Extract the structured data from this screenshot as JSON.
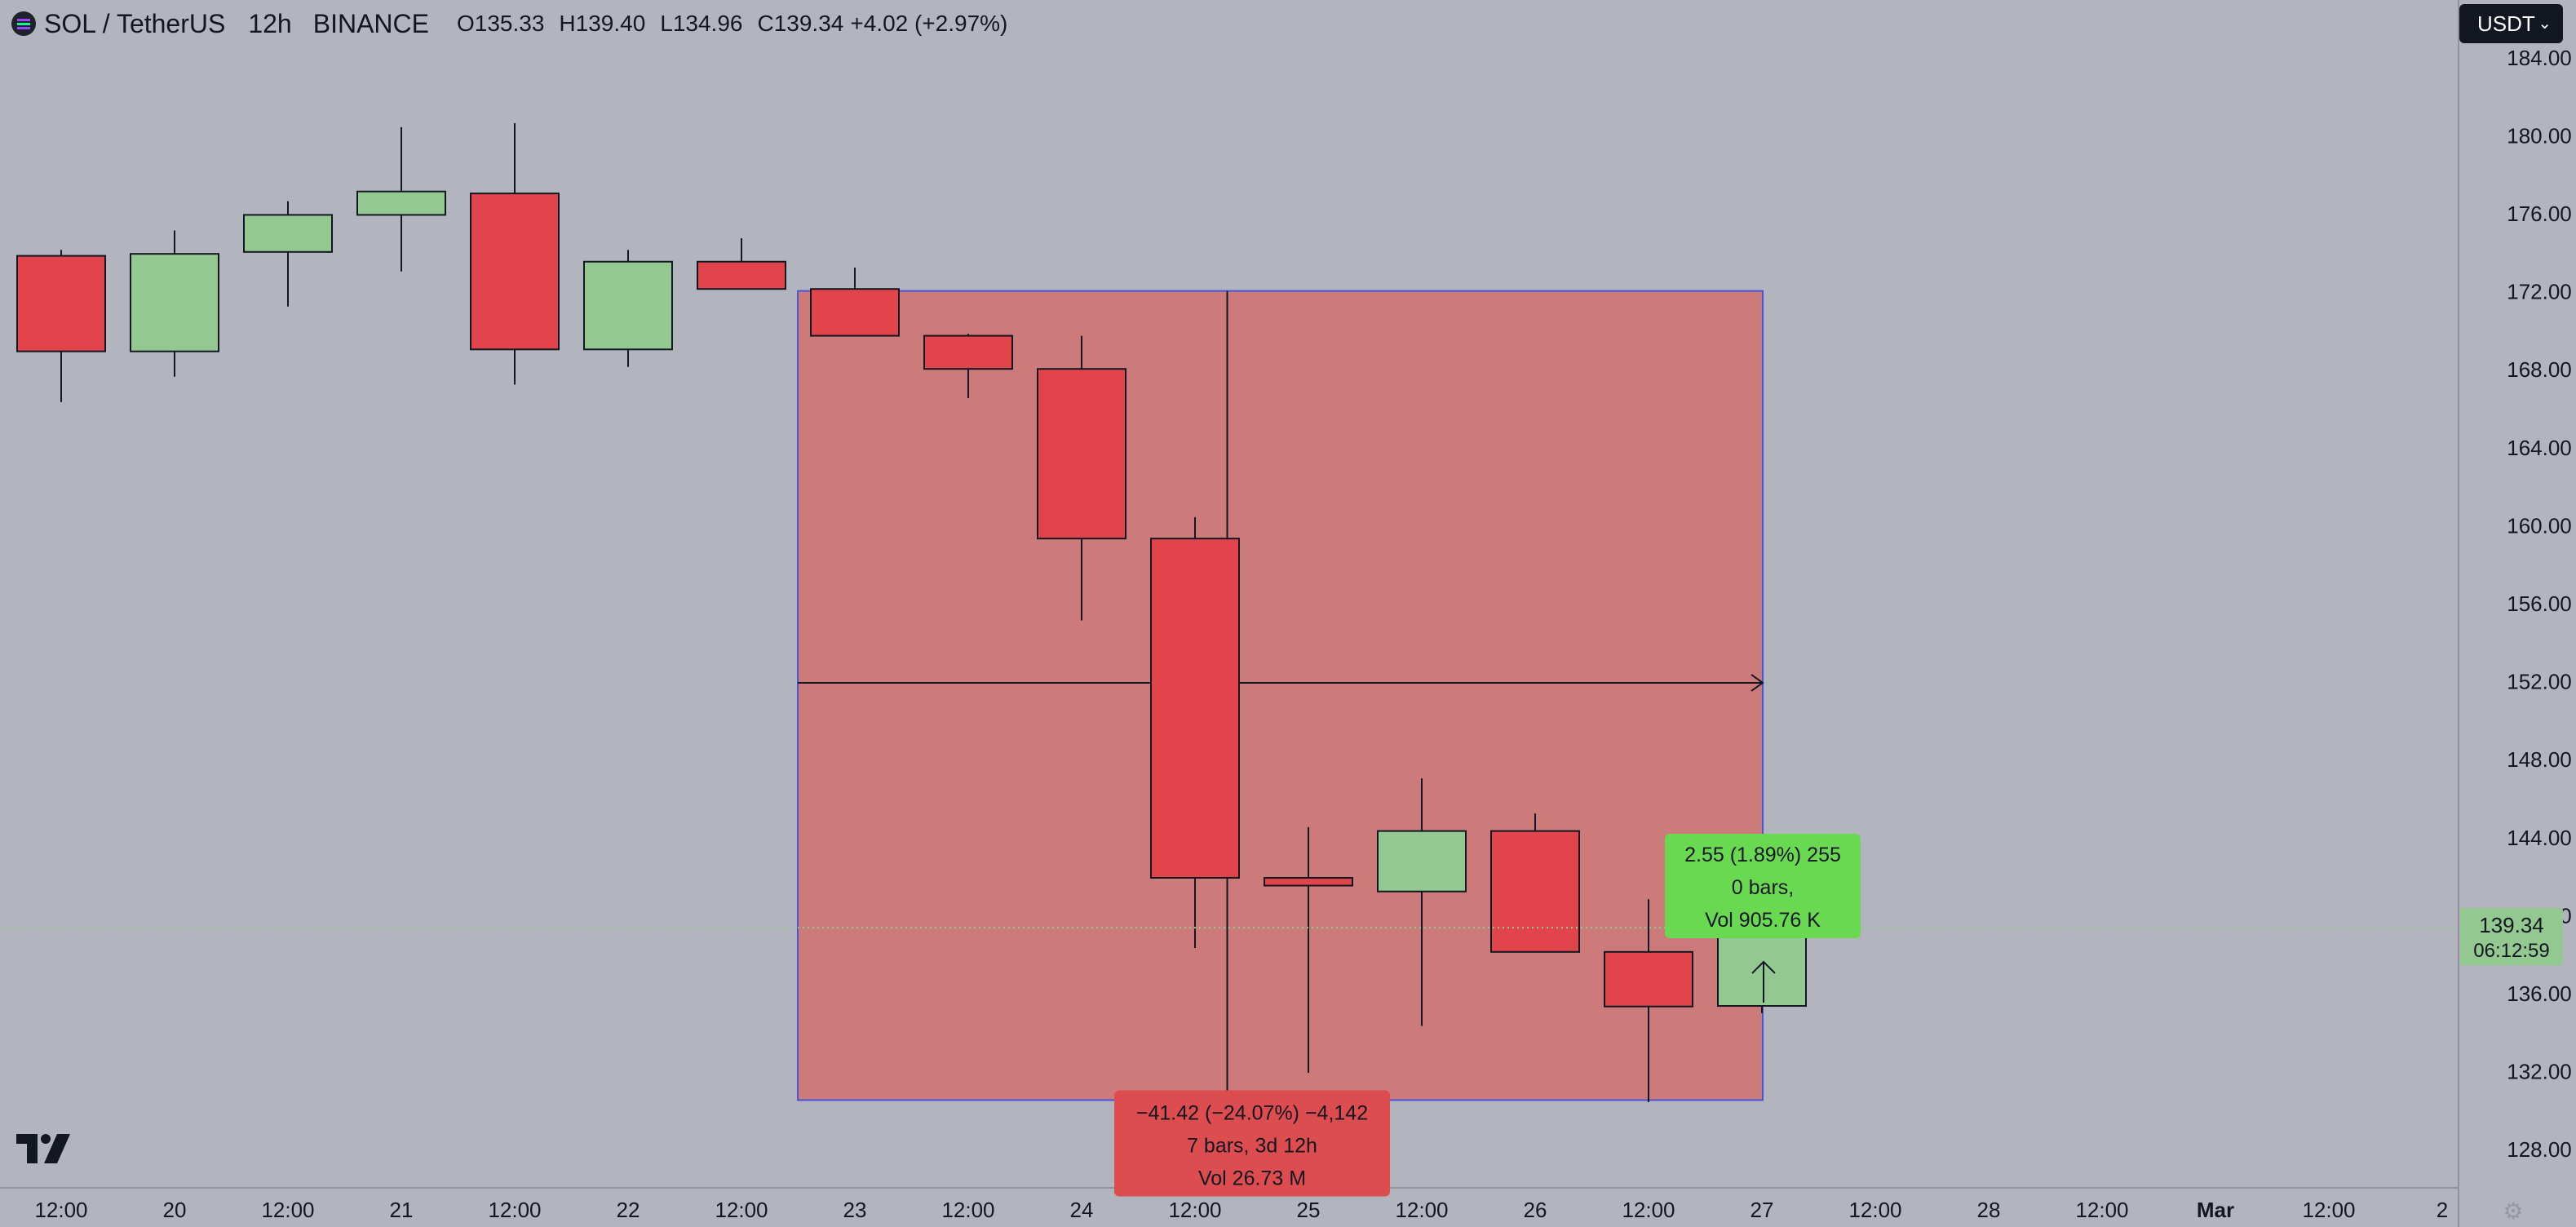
{
  "header": {
    "symbol": "SOL / TetherUS",
    "interval": "12h",
    "exchange": "BINANCE",
    "o_label": "O",
    "o_value": "135.33",
    "h_label": "H",
    "h_value": "139.40",
    "l_label": "L",
    "l_value": "134.96",
    "c_label": "C",
    "c_value": "139.34",
    "change": "+4.02 (+2.97%)"
  },
  "currency_button": {
    "label": "USDT"
  },
  "colors": {
    "background": "#b2b5be",
    "up": "#93c891",
    "down": "#e2444b",
    "range_fill": "#cd7a7b",
    "range_border": "#4a54d9",
    "label_green": "#6ad952",
    "label_red": "#dd4c4f",
    "last_price": "#93c891"
  },
  "chart_data": {
    "type": "candlestick",
    "interval": "12h",
    "x_ticks": [
      "12:00",
      "20",
      "12:00",
      "21",
      "12:00",
      "22",
      "12:00",
      "23",
      "12:00",
      "24",
      "12:00",
      "25",
      "12:00",
      "26",
      "12:00",
      "27",
      "12:00",
      "28",
      "12:00",
      "Mar",
      "12:00",
      "2"
    ],
    "y_ticks": [
      "128.00",
      "132.00",
      "136.00",
      "140.00",
      "144.00",
      "148.00",
      "152.00",
      "156.00",
      "160.00",
      "164.00",
      "168.00",
      "172.00",
      "176.00",
      "180.00",
      "184.00"
    ],
    "ylim": [
      126,
      186.5
    ],
    "candles": [
      {
        "o": 173.8,
        "h": 174.1,
        "l": 166.3,
        "c": 168.9
      },
      {
        "o": 168.9,
        "h": 175.1,
        "l": 167.6,
        "c": 173.9
      },
      {
        "o": 174.0,
        "h": 176.6,
        "l": 171.2,
        "c": 175.9
      },
      {
        "o": 175.9,
        "h": 180.4,
        "l": 173.0,
        "c": 177.1
      },
      {
        "o": 177.0,
        "h": 180.6,
        "l": 167.2,
        "c": 169.0
      },
      {
        "o": 169.0,
        "h": 174.1,
        "l": 168.1,
        "c": 173.5
      },
      {
        "o": 173.5,
        "h": 174.7,
        "l": 172.1,
        "c": 172.1
      },
      {
        "o": 172.1,
        "h": 173.2,
        "l": 169.7,
        "c": 169.7
      },
      {
        "o": 169.7,
        "h": 169.8,
        "l": 166.5,
        "c": 168.0
      },
      {
        "o": 168.0,
        "h": 169.7,
        "l": 155.1,
        "c": 159.3
      },
      {
        "o": 159.3,
        "h": 160.4,
        "l": 138.3,
        "c": 141.9
      },
      {
        "o": 141.9,
        "h": 144.5,
        "l": 131.9,
        "c": 141.5
      },
      {
        "o": 141.2,
        "h": 147.0,
        "l": 134.3,
        "c": 144.3
      },
      {
        "o": 144.3,
        "h": 145.2,
        "l": 138.1,
        "c": 138.1
      },
      {
        "o": 138.1,
        "h": 140.8,
        "l": 130.4,
        "c": 135.3
      },
      {
        "o": 135.33,
        "h": 139.4,
        "l": 134.96,
        "c": 139.34
      }
    ],
    "measure": {
      "from_bar": 7,
      "to_bar": 14,
      "top": 172.0,
      "bottom": 130.5,
      "label": [
        "−41.42 (−24.07%) −4,142",
        "7 bars, 3d 12h",
        "Vol 26.73 M"
      ]
    },
    "crosshair": {
      "bar": 10.5,
      "price": 151.9
    },
    "cursor_label": [
      "2.55 (1.89%) 255",
      "0 bars,",
      "Vol 905.76 K"
    ],
    "last_price": {
      "price": 139.34,
      "label": "139.34",
      "countdown": "06:12:59"
    }
  }
}
